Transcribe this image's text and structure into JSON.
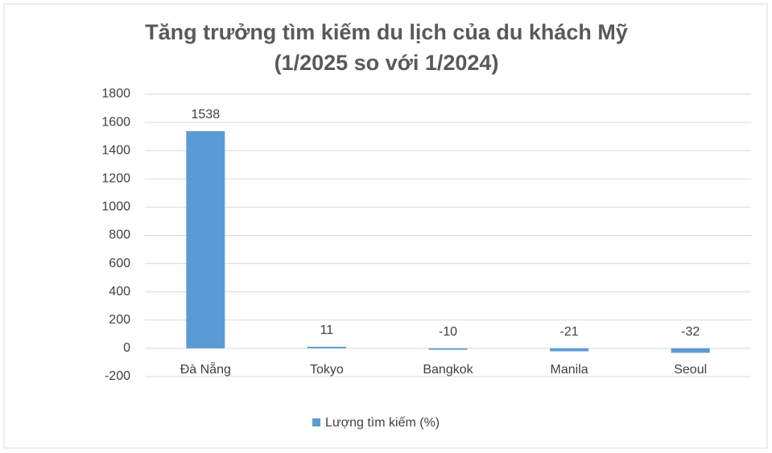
{
  "chart_data": {
    "type": "bar",
    "title": [
      "Tăng trưởng tìm kiếm du lịch của du khách Mỹ",
      "(1/2025 so với 1/2024)"
    ],
    "categories": [
      "Đà Nẵng",
      "Tokyo",
      "Bangkok",
      "Manila",
      "Seoul"
    ],
    "series": [
      {
        "name": "Lượng tìm kiếm (%)",
        "color": "#5b9bd5",
        "values": [
          1538,
          11,
          -10,
          -21,
          -32
        ]
      }
    ],
    "ylim": [
      -200,
      1800
    ],
    "yticks": [
      -200,
      0,
      200,
      400,
      600,
      800,
      1000,
      1200,
      1400,
      1600,
      1800
    ],
    "grid": true,
    "legend": "bottom"
  }
}
